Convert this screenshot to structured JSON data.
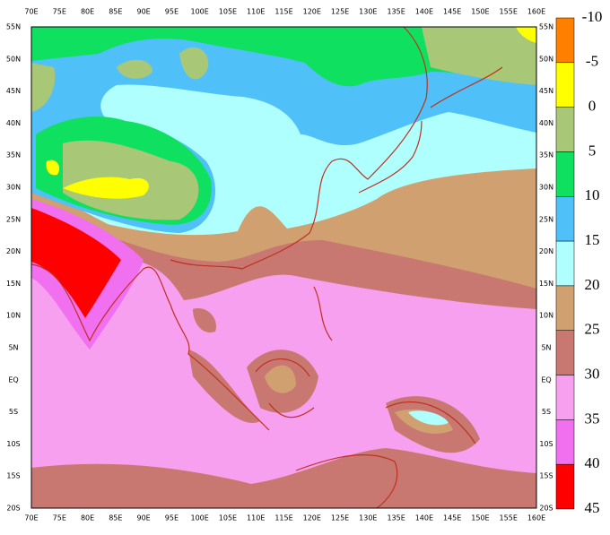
{
  "map": {
    "lon_labels": [
      "70E",
      "75E",
      "80E",
      "85E",
      "90E",
      "95E",
      "100E",
      "105E",
      "110E",
      "115E",
      "120E",
      "125E",
      "130E",
      "135E",
      "140E",
      "145E",
      "150E",
      "155E",
      "160E"
    ],
    "lat_labels": [
      "55N",
      "50N",
      "45N",
      "40N",
      "35N",
      "30N",
      "25N",
      "20N",
      "15N",
      "10N",
      "5N",
      "EQ",
      "5S",
      "10S",
      "15S",
      "20S"
    ]
  },
  "legend": {
    "levels": [
      -10,
      -5,
      0,
      5,
      10,
      15,
      20,
      25,
      30,
      35,
      40,
      45
    ],
    "colors": [
      "#ff8000",
      "#ffff00",
      "#a8c878",
      "#10e060",
      "#50c0f8",
      "#b0ffff",
      "#d0a070",
      "#c87870",
      "#f8a0f0",
      "#f070f0",
      "#ff0000"
    ]
  }
}
